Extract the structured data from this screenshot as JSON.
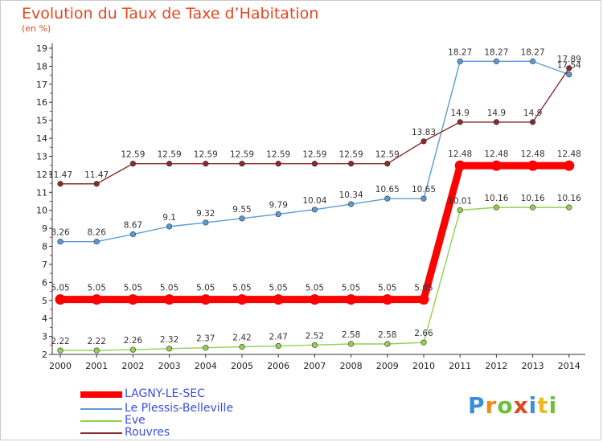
{
  "chart_data": {
    "type": "line",
    "title": "Evolution du Taux de Taxe d’Habitation",
    "subtitle": "(en %)",
    "x": [
      "2000",
      "2001",
      "2002",
      "2003",
      "2004",
      "2005",
      "2006",
      "2007",
      "2008",
      "2009",
      "2010",
      "2011",
      "2012",
      "2013",
      "2014"
    ],
    "ylim": [
      2,
      19
    ],
    "yticks": [
      "2",
      "3",
      "4",
      "5",
      "6",
      "7",
      "8",
      "9",
      "10",
      "11",
      "12",
      "13",
      "14",
      "15",
      "16",
      "17",
      "18",
      "19"
    ],
    "grid": false,
    "legend_position": "bottom-left",
    "series": [
      {
        "name": "LAGNY-LE-SEC",
        "color": "#ff0000",
        "values": [
          5.05,
          5.05,
          5.05,
          5.05,
          5.05,
          5.05,
          5.05,
          5.05,
          5.05,
          5.05,
          5.05,
          12.48,
          12.48,
          12.48,
          12.48
        ],
        "labels": [
          "5.05",
          "5.05",
          "5.05",
          "5.05",
          "5.05",
          "5.05",
          "5.05",
          "5.05",
          "5.05",
          "5.05",
          "5.05",
          "12.48",
          "12.48",
          "12.48",
          "12.48"
        ]
      },
      {
        "name": "Le Plessis-Belleville",
        "color": "#5b9bd5",
        "values": [
          8.26,
          8.26,
          8.67,
          9.1,
          9.32,
          9.55,
          9.79,
          10.04,
          10.34,
          10.65,
          10.65,
          18.27,
          18.27,
          18.27,
          17.54
        ],
        "labels": [
          "8.26",
          "8.26",
          "8.67",
          "9.1",
          "9.32",
          "9.55",
          "9.79",
          "10.04",
          "10.34",
          "10.65",
          "10.65",
          "18.27",
          "18.27",
          "18.27",
          "17.54"
        ]
      },
      {
        "name": "Eve",
        "color": "#92d050",
        "values": [
          2.22,
          2.22,
          2.26,
          2.32,
          2.37,
          2.42,
          2.47,
          2.52,
          2.58,
          2.58,
          2.66,
          10.01,
          10.16,
          10.16,
          10.16
        ],
        "labels": [
          "2.22",
          "2.22",
          "2.26",
          "2.32",
          "2.37",
          "2.42",
          "2.47",
          "2.52",
          "2.58",
          "2.58",
          "2.66",
          "10.01",
          "10.16",
          "10.16",
          "10.16"
        ]
      },
      {
        "name": "Rouvres",
        "color": "#8b2a2a",
        "values": [
          11.47,
          11.47,
          12.59,
          12.59,
          12.59,
          12.59,
          12.59,
          12.59,
          12.59,
          12.59,
          13.83,
          14.9,
          14.9,
          14.9,
          17.89
        ],
        "labels": [
          "11.47",
          "11.47",
          "12.59",
          "12.59",
          "12.59",
          "12.59",
          "12.59",
          "12.59",
          "12.59",
          "12.59",
          "13.83",
          "14.9",
          "14.9",
          "14.9",
          "17.89"
        ]
      }
    ]
  },
  "logo": {
    "letters": [
      "P",
      "r",
      "o",
      "x",
      "i",
      "t",
      "i"
    ],
    "colors": [
      "#3a8fd8",
      "#f08a1c",
      "#6bbf3a",
      "#e0491f",
      "#3a8fd8",
      "#f0b81c",
      "#6bbf3a"
    ]
  }
}
